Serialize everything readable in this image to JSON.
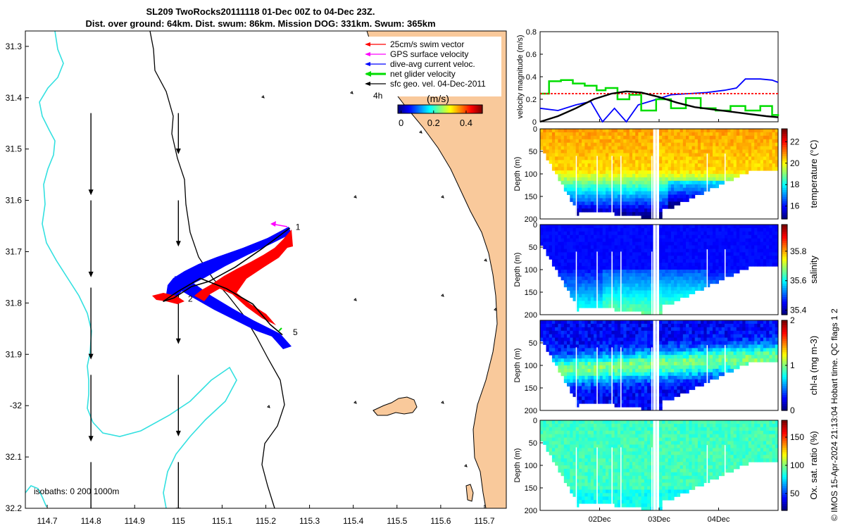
{
  "title": {
    "line1": "SL209 TwoRocks20111118 01-Dec 00Z to 04-Dec 23Z.",
    "line2": "Dist. over ground: 64km. Dist. swum: 86km. Mission DOG: 331km. Swum: 365km"
  },
  "credit": "© IMOS 15-Apr-2024 21:13:04 Hobart time. QC flags 1  2",
  "colors": {
    "land": "#f9c99b",
    "coast": "#000000",
    "isobath_200": "#000000",
    "isobath_1000": "#33e0e0",
    "swim_vector": "#ff0000",
    "gps_surface": "#ff00ff",
    "dive_avg": "#0000ff",
    "net_glider": "#00dd00",
    "sfc_geo": "#000000"
  },
  "chart_data": [
    {
      "type": "map",
      "xlim": [
        114.65,
        115.75
      ],
      "ylim": [
        -32.2,
        -31.27
      ],
      "x_ticks": [
        114.7,
        114.8,
        114.9,
        115,
        115.1,
        115.2,
        115.3,
        115.4,
        115.5,
        115.6,
        115.7
      ],
      "x_tick_labels": [
        "114.7",
        "114.8",
        "114.9",
        "115",
        "115.1",
        "115.2",
        "115.3",
        "115.4",
        "115.5",
        "115.6",
        "115.7"
      ],
      "y_ticks": [
        -31.3,
        -31.4,
        -31.5,
        -31.6,
        -31.7,
        -31.8,
        -31.9,
        -32,
        -32.1,
        -32.2
      ],
      "y_tick_labels": [
        "31.3",
        "31.4",
        "31.5",
        "31.6",
        "31.7",
        "31.8",
        "31.9",
        "-32",
        "32.1",
        "32.2"
      ],
      "isobaths_label": "isobaths: 0   200  1000m",
      "legend": {
        "position": "top-right",
        "entries": [
          {
            "label": "25cm/s swim vector",
            "color": "#ff0000"
          },
          {
            "label": "GPS surface velocity",
            "color": "#ff00ff"
          },
          {
            "label": "dive-avg current veloc.",
            "color": "#0000ff"
          },
          {
            "label": "net glider velocity",
            "color": "#00dd00"
          },
          {
            "label": "sfc geo. vel. 04-Dec-2011",
            "color": "#000000"
          }
        ]
      },
      "colorbar": {
        "title": "(m/s)",
        "ticks": [
          0,
          0.2,
          0.4
        ],
        "tick_labels": [
          "0",
          "0.2",
          "0.4"
        ],
        "range": [
          -0.02,
          0.5
        ]
      },
      "time_label": "4h",
      "track": [
        [
          115.255,
          -31.654
        ],
        [
          115.19,
          -31.695
        ],
        [
          115.13,
          -31.73
        ],
        [
          115.07,
          -31.758
        ],
        [
          115.03,
          -31.768
        ],
        [
          114.99,
          -31.79
        ],
        [
          114.965,
          -31.797
        ],
        [
          115.0,
          -31.777
        ],
        [
          115.05,
          -31.752
        ],
        [
          115.11,
          -31.772
        ],
        [
          115.17,
          -31.802
        ],
        [
          115.21,
          -31.842
        ],
        [
          115.238,
          -31.862
        ]
      ],
      "day_markers": [
        {
          "label": "1",
          "lon": 115.268,
          "lat": -31.652
        },
        {
          "label": "2",
          "lon": 115.022,
          "lat": -31.792
        },
        {
          "label": "5",
          "lon": 115.262,
          "lat": -31.857
        }
      ],
      "geo_vectors": [
        {
          "lon": 114.8,
          "lat": -31.43,
          "u": 0,
          "v": -0.16
        },
        {
          "lon": 115.0,
          "lat": -31.43,
          "u": 0,
          "v": -0.08
        },
        {
          "lon": 114.8,
          "lat": -31.6,
          "u": 0,
          "v": -0.15
        },
        {
          "lon": 115.0,
          "lat": -31.6,
          "u": 0,
          "v": -0.09
        },
        {
          "lon": 114.8,
          "lat": -31.77,
          "u": 0,
          "v": -0.14
        },
        {
          "lon": 115.0,
          "lat": -31.77,
          "u": 0,
          "v": -0.11
        },
        {
          "lon": 114.8,
          "lat": -31.94,
          "u": 0,
          "v": -0.13
        },
        {
          "lon": 115.0,
          "lat": -31.94,
          "u": 0,
          "v": -0.12
        },
        {
          "lon": 114.8,
          "lat": -32.11,
          "u": 0,
          "v": -0.12
        },
        {
          "lon": 115.0,
          "lat": -32.11,
          "u": 0,
          "v": -0.1
        }
      ]
    },
    {
      "type": "line",
      "ylabel": "velocity magnitude (m/s)",
      "ylim": [
        0,
        0.8
      ],
      "y_ticks": [
        0,
        0.2,
        0.4,
        0.6,
        0.8
      ],
      "xlim": [
        0,
        4
      ],
      "series": [
        {
          "color": "#0000ff",
          "x": [
            0,
            0.3,
            0.6,
            0.85,
            1.05,
            1.25,
            1.45,
            1.65,
            1.9,
            2.2,
            2.5,
            2.8,
            3.1,
            3.3,
            3.45,
            3.7,
            3.9,
            4.0
          ],
          "values": [
            0.12,
            0.1,
            0.15,
            0.18,
            0.0,
            0.12,
            0.0,
            0.15,
            0.19,
            0.24,
            0.25,
            0.26,
            0.28,
            0.3,
            0.38,
            0.38,
            0.37,
            0.35
          ]
        },
        {
          "color": "#00dd00",
          "x": [
            0,
            0.15,
            0.35,
            0.55,
            0.75,
            0.95,
            1.1,
            1.3,
            1.5,
            1.7,
            1.95,
            2.2,
            2.45,
            2.7,
            2.95,
            3.2,
            3.45,
            3.7,
            3.9,
            4.0
          ],
          "values": [
            0.25,
            0.36,
            0.37,
            0.34,
            0.32,
            0.28,
            0.3,
            0.2,
            0.24,
            0.1,
            0.2,
            0.12,
            0.21,
            0.12,
            0.1,
            0.14,
            0.1,
            0.14,
            0.06,
            0.05
          ]
        },
        {
          "color": "#ff0000",
          "x": [
            0,
            4.0
          ],
          "values": [
            0.25,
            0.25
          ]
        },
        {
          "color": "#000000",
          "x": [
            0,
            0.3,
            0.6,
            0.9,
            1.2,
            1.45,
            1.7,
            2.0,
            2.3,
            2.6,
            2.9,
            3.2,
            3.5,
            3.8,
            4.0
          ],
          "values": [
            0.0,
            0.05,
            0.12,
            0.2,
            0.25,
            0.27,
            0.26,
            0.22,
            0.17,
            0.13,
            0.11,
            0.09,
            0.07,
            0.05,
            0.04
          ]
        }
      ]
    },
    {
      "type": "heatmap",
      "variable": "temperature",
      "colorbar_label": "temperature (°C)",
      "ylabel": "Depth (m)",
      "ylim": [
        200,
        0
      ],
      "y_ticks": [
        0,
        50,
        100,
        150,
        200
      ],
      "clim": [
        14.8,
        23.2
      ],
      "colorbar_ticks": [
        16,
        18,
        20,
        22
      ]
    },
    {
      "type": "heatmap",
      "variable": "salinity",
      "colorbar_label": "salinity",
      "ylabel": "Depth (m)",
      "ylim": [
        200,
        0
      ],
      "y_ticks": [
        0,
        50,
        100,
        150,
        200
      ],
      "clim": [
        35.37,
        35.98
      ],
      "colorbar_ticks": [
        35.4,
        35.6,
        35.8
      ]
    },
    {
      "type": "heatmap",
      "variable": "chl-a",
      "colorbar_label": "chl-a (mg m-3)",
      "ylabel": "Depth (m)",
      "ylim": [
        200,
        0
      ],
      "y_ticks": [
        50,
        100,
        150,
        200
      ],
      "clim": [
        0,
        2
      ],
      "colorbar_ticks": [
        0,
        1,
        2
      ]
    },
    {
      "type": "heatmap",
      "variable": "oxygen",
      "colorbar_label": "Ox. sat. ratio (%)",
      "ylabel": "Depth (m)",
      "ylim": [
        200,
        0
      ],
      "y_ticks": [
        0,
        50,
        100,
        150,
        200
      ],
      "clim": [
        20,
        180
      ],
      "colorbar_ticks": [
        50,
        100,
        150
      ],
      "x_ticks": [
        1,
        2,
        3
      ],
      "x_tick_labels": [
        "02Dec",
        "03Dec",
        "04Dec"
      ]
    }
  ]
}
